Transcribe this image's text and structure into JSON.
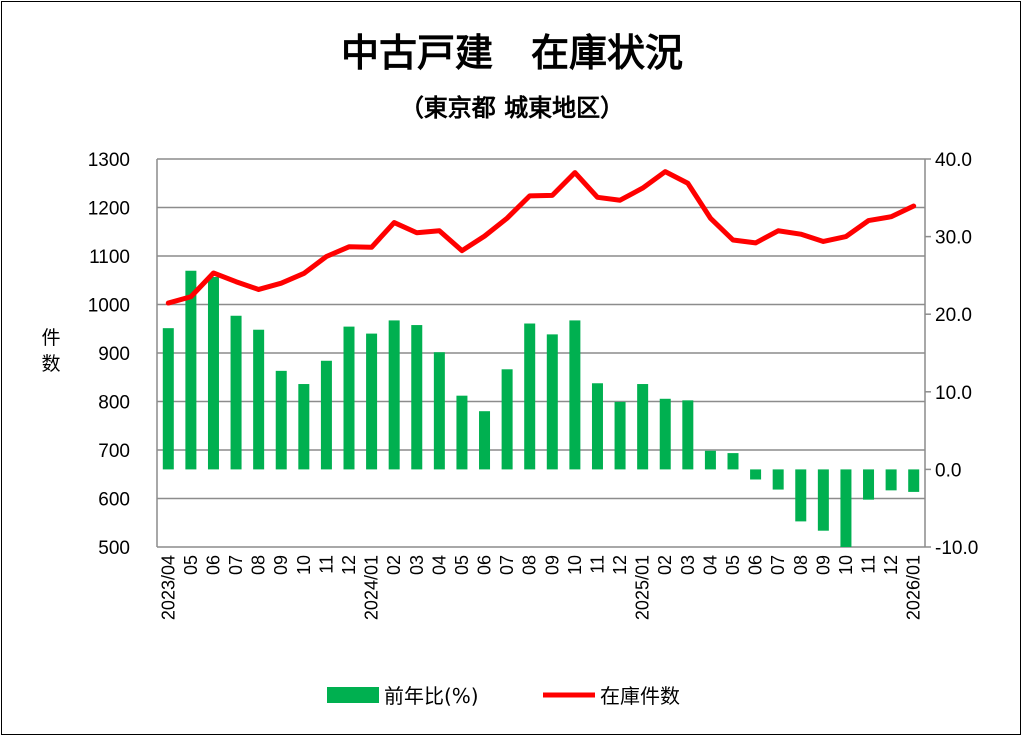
{
  "chart_data": {
    "type": "bar+line",
    "title": "中古戸建　在庫状況",
    "subtitle": "（東京都 城東地区）",
    "ylabel": "件数",
    "ylim": [
      500,
      1300
    ],
    "y2lim": [
      -10,
      40
    ],
    "yticks": [
      "1300",
      "1200",
      "1100",
      "1000",
      "900",
      "800",
      "700",
      "600",
      "500"
    ],
    "y2ticks": [
      "40.0",
      "30.0",
      "20.0",
      "10.0",
      "0.0",
      "-10.0"
    ],
    "y2_negative_color": "#E00000",
    "grid": true,
    "legend_position": "bottom",
    "categories": [
      "2023/04",
      "05",
      "06",
      "07",
      "08",
      "09",
      "10",
      "11",
      "12",
      "2024/01",
      "02",
      "03",
      "04",
      "05",
      "06",
      "07",
      "08",
      "09",
      "10",
      "11",
      "12",
      "2025/01",
      "02",
      "03",
      "04",
      "05",
      "06",
      "07",
      "08",
      "09",
      "10",
      "11",
      "12",
      "2026/01"
    ],
    "series": [
      {
        "name": "前年比(%)",
        "type": "bar",
        "axis": "right",
        "color": "#00B050",
        "values": [
          18.2,
          25.6,
          24.8,
          19.8,
          18.0,
          12.7,
          11.0,
          14.0,
          18.4,
          17.5,
          19.2,
          18.6,
          15.1,
          9.5,
          7.5,
          12.9,
          18.8,
          17.4,
          19.2,
          11.1,
          8.7,
          11.0,
          9.1,
          8.9,
          2.4,
          2.1,
          -1.3,
          -2.6,
          -6.7,
          -7.9,
          -10.0,
          -3.9,
          -2.7,
          -2.9
        ]
      },
      {
        "name": "在庫件数",
        "type": "line",
        "axis": "left",
        "color": "#FF0000",
        "values": [
          1003,
          1016,
          1065,
          1047,
          1031,
          1044,
          1064,
          1099,
          1119,
          1118,
          1169,
          1148,
          1152,
          1111,
          1141,
          1178,
          1224,
          1225,
          1272,
          1221,
          1215,
          1240,
          1274,
          1250,
          1178,
          1133,
          1127,
          1152,
          1145,
          1130,
          1140,
          1173,
          1181,
          1203
        ]
      }
    ]
  }
}
